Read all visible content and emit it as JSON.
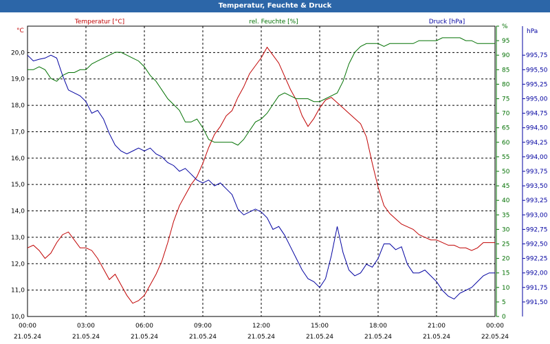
{
  "chart_data": {
    "type": "line",
    "title": "Temperatur, Feuchte & Druck",
    "grid": true,
    "legend": "top",
    "x_ticks": [
      {
        "time": "00:00",
        "date": "21.05.24"
      },
      {
        "time": "03:00",
        "date": "21.05.24"
      },
      {
        "time": "06:00",
        "date": "21.05.24"
      },
      {
        "time": "09:00",
        "date": "21.05.24"
      },
      {
        "time": "12:00",
        "date": "21.05.24"
      },
      {
        "time": "15:00",
        "date": "21.05.24"
      },
      {
        "time": "18:00",
        "date": "21.05.24"
      },
      {
        "time": "21:00",
        "date": "21.05.24"
      },
      {
        "time": "00:00",
        "date": "22.05.24"
      }
    ],
    "xlim": [
      "00:00",
      "24:00"
    ],
    "axes": {
      "temperature": {
        "label": "Temperatur [°C]",
        "unit": "°C",
        "color": "#c00000",
        "ylim": [
          10,
          21
        ],
        "ticks": [
          "10,0",
          "11,0",
          "12,0",
          "13,0",
          "14,0",
          "15,0",
          "16,0",
          "17,0",
          "18,0",
          "19,0",
          "20,0"
        ]
      },
      "humidity": {
        "label": "rel. Feuchte [%]",
        "unit": "%",
        "color": "#007000",
        "ylim": [
          0,
          100
        ],
        "ticks": [
          "0",
          "5",
          "10",
          "15",
          "20",
          "25",
          "30",
          "35",
          "40",
          "45",
          "50",
          "55",
          "60",
          "65",
          "70",
          "75",
          "80",
          "85",
          "90",
          "95",
          "%"
        ]
      },
      "pressure": {
        "label": "Druck [hPa]",
        "unit": "hPa",
        "color": "#0000a0",
        "ylim": [
          991.25,
          996.25
        ],
        "ticks": [
          "991,50",
          "991,75",
          "992,00",
          "992,25",
          "992,50",
          "992,75",
          "993,00",
          "993,25",
          "993,50",
          "993,75",
          "994,00",
          "994,25",
          "994,50",
          "994,75",
          "995,00",
          "995,25",
          "995,50",
          "995,75"
        ]
      }
    },
    "series": [
      {
        "name": "Temperatur [°C]",
        "axis": "temperature",
        "color": "#c00000",
        "x": [
          0,
          0.3,
          0.6,
          0.9,
          1.2,
          1.5,
          1.8,
          2.1,
          2.4,
          2.7,
          3.0,
          3.3,
          3.6,
          3.9,
          4.2,
          4.5,
          4.8,
          5.1,
          5.4,
          5.7,
          6.0,
          6.3,
          6.6,
          6.9,
          7.2,
          7.5,
          7.8,
          8.1,
          8.4,
          8.7,
          9.0,
          9.3,
          9.6,
          9.9,
          10.2,
          10.5,
          10.8,
          11.1,
          11.4,
          11.7,
          12.0,
          12.3,
          12.6,
          12.9,
          13.2,
          13.5,
          13.8,
          14.1,
          14.4,
          14.7,
          15.0,
          15.3,
          15.6,
          15.9,
          16.2,
          16.5,
          16.8,
          17.1,
          17.4,
          17.7,
          18.0,
          18.3,
          18.6,
          18.9,
          19.2,
          19.5,
          19.8,
          20.1,
          20.4,
          20.7,
          21.0,
          21.3,
          21.6,
          21.9,
          22.2,
          22.5,
          22.8,
          23.1,
          23.4,
          23.7,
          24.0
        ],
        "y": [
          12.6,
          12.7,
          12.5,
          12.2,
          12.4,
          12.8,
          13.1,
          13.2,
          12.9,
          12.6,
          12.6,
          12.5,
          12.2,
          11.8,
          11.4,
          11.6,
          11.2,
          10.8,
          10.5,
          10.6,
          10.8,
          11.2,
          11.6,
          12.1,
          12.8,
          13.6,
          14.2,
          14.6,
          15.0,
          15.3,
          15.8,
          16.4,
          16.9,
          17.2,
          17.6,
          17.8,
          18.3,
          18.7,
          19.2,
          19.5,
          19.8,
          20.2,
          19.9,
          19.6,
          19.1,
          18.6,
          18.2,
          17.6,
          17.2,
          17.5,
          17.9,
          18.2,
          18.3,
          18.1,
          17.9,
          17.7,
          17.5,
          17.3,
          16.8,
          15.8,
          14.9,
          14.2,
          13.9,
          13.7,
          13.5,
          13.4,
          13.3,
          13.1,
          13.0,
          12.9,
          12.9,
          12.8,
          12.7,
          12.7,
          12.6,
          12.6,
          12.5,
          12.6,
          12.8,
          12.8,
          12.8
        ]
      },
      {
        "name": "rel. Feuchte [%]",
        "axis": "humidity",
        "color": "#007000",
        "x": [
          0,
          0.3,
          0.6,
          0.9,
          1.2,
          1.5,
          1.8,
          2.1,
          2.4,
          2.7,
          3.0,
          3.3,
          3.6,
          3.9,
          4.2,
          4.5,
          4.8,
          5.1,
          5.4,
          5.7,
          6.0,
          6.3,
          6.6,
          6.9,
          7.2,
          7.5,
          7.8,
          8.1,
          8.4,
          8.7,
          9.0,
          9.3,
          9.6,
          9.9,
          10.2,
          10.5,
          10.8,
          11.1,
          11.4,
          11.7,
          12.0,
          12.3,
          12.6,
          12.9,
          13.2,
          13.5,
          13.8,
          14.1,
          14.4,
          14.7,
          15.0,
          15.3,
          15.6,
          15.9,
          16.2,
          16.5,
          16.8,
          17.1,
          17.4,
          17.7,
          18.0,
          18.3,
          18.6,
          18.9,
          19.2,
          19.5,
          19.8,
          20.1,
          20.4,
          20.7,
          21.0,
          21.3,
          21.6,
          21.9,
          22.2,
          22.5,
          22.8,
          23.1,
          23.4,
          23.7,
          24.0
        ],
        "y": [
          85,
          85,
          86,
          85,
          82,
          81,
          83,
          84,
          84,
          85,
          85,
          87,
          88,
          89,
          90,
          91,
          91,
          90,
          89,
          88,
          86,
          83,
          81,
          78,
          75,
          73,
          71,
          67,
          67,
          68,
          65,
          61,
          60,
          60,
          60,
          60,
          59,
          61,
          64,
          67,
          68,
          70,
          73,
          76,
          77,
          76,
          75,
          75,
          75,
          74,
          74,
          75,
          76,
          77,
          81,
          87,
          91,
          93,
          94,
          94,
          94,
          93,
          94,
          94,
          94,
          94,
          94,
          95,
          95,
          95,
          95,
          96,
          96,
          96,
          96,
          95,
          95,
          94,
          94,
          94,
          94
        ]
      },
      {
        "name": "Druck [hPa]",
        "axis": "pressure",
        "color": "#0000a0",
        "x": [
          0,
          0.3,
          0.6,
          0.9,
          1.2,
          1.5,
          1.8,
          2.1,
          2.4,
          2.7,
          3.0,
          3.3,
          3.6,
          3.9,
          4.2,
          4.5,
          4.8,
          5.1,
          5.4,
          5.7,
          6.0,
          6.3,
          6.6,
          6.9,
          7.2,
          7.5,
          7.8,
          8.1,
          8.4,
          8.7,
          9.0,
          9.3,
          9.6,
          9.9,
          10.2,
          10.5,
          10.8,
          11.1,
          11.4,
          11.7,
          12.0,
          12.3,
          12.6,
          12.9,
          13.2,
          13.5,
          13.8,
          14.1,
          14.4,
          14.7,
          15.0,
          15.3,
          15.6,
          15.9,
          16.2,
          16.5,
          16.8,
          17.1,
          17.4,
          17.7,
          18.0,
          18.3,
          18.6,
          18.9,
          19.2,
          19.5,
          19.8,
          20.1,
          20.4,
          20.7,
          21.0,
          21.3,
          21.6,
          21.9,
          22.2,
          22.5,
          22.8,
          23.1,
          23.4,
          23.7,
          24.0
        ],
        "y": [
          995.75,
          995.65,
          995.68,
          995.7,
          995.75,
          995.7,
          995.4,
          995.15,
          995.1,
          995.05,
          994.95,
          994.75,
          994.8,
          994.65,
          994.4,
          994.2,
          994.1,
          994.05,
          994.1,
          994.15,
          994.1,
          994.15,
          994.05,
          994.0,
          993.9,
          993.85,
          993.75,
          993.8,
          993.7,
          993.6,
          993.55,
          993.6,
          993.5,
          993.55,
          993.45,
          993.35,
          993.1,
          993.0,
          993.05,
          993.1,
          993.05,
          992.95,
          992.75,
          992.8,
          992.65,
          992.45,
          992.25,
          992.05,
          991.9,
          991.85,
          991.75,
          991.9,
          992.3,
          992.8,
          992.35,
          992.05,
          991.95,
          992.0,
          992.15,
          992.1,
          992.25,
          992.5,
          992.5,
          992.4,
          992.45,
          992.15,
          992.0,
          992.0,
          992.05,
          991.95,
          991.85,
          991.7,
          991.6,
          991.55,
          991.65,
          991.7,
          991.75,
          991.85,
          991.95,
          992.0,
          992.0
        ]
      }
    ]
  }
}
